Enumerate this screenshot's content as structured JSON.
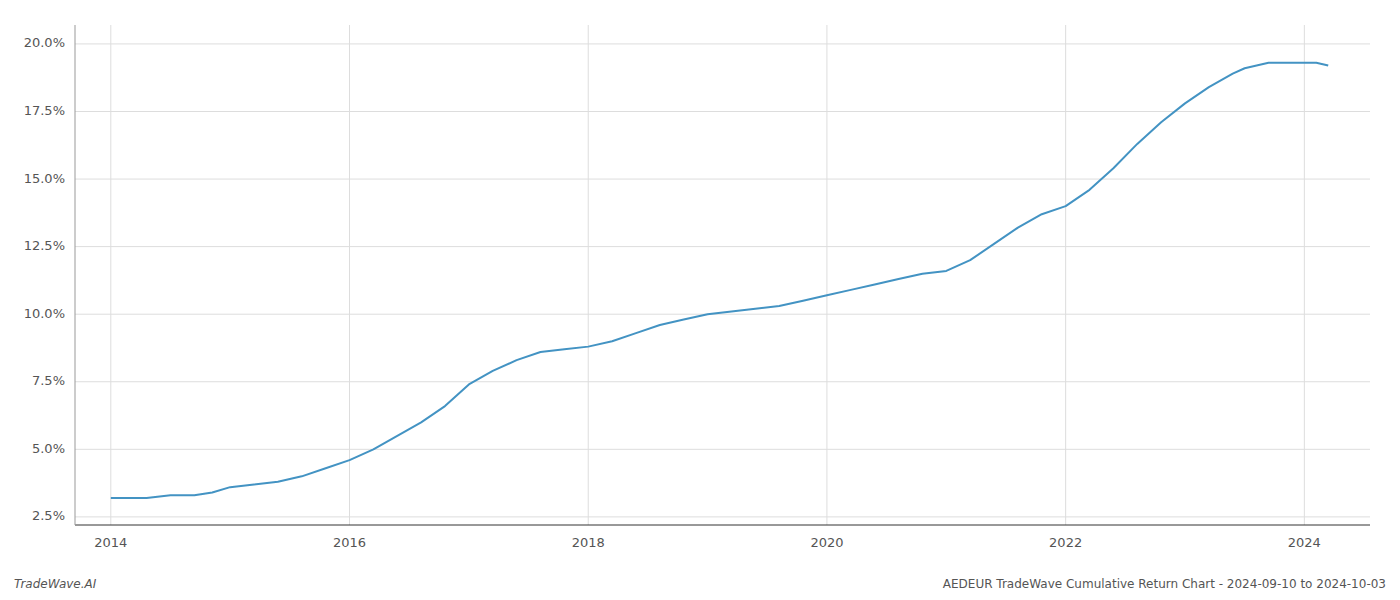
{
  "chart_data": {
    "type": "line",
    "annotations": [
      "TradeWave.AI",
      "AEDEUR TradeWave Cumulative Return Chart - 2024-09-10 to 2024-10-03"
    ],
    "color": "#4393c3",
    "grid": true,
    "xlim": [
      2013.7,
      2024.55
    ],
    "ylim": [
      0.022,
      0.207
    ],
    "xticks": [
      2014,
      2016,
      2018,
      2020,
      2022,
      2024
    ],
    "yticks": [
      {
        "value": 0.025,
        "label": "2.5%"
      },
      {
        "value": 0.05,
        "label": "5.0%"
      },
      {
        "value": 0.075,
        "label": "7.5%"
      },
      {
        "value": 0.1,
        "label": "10.0%"
      },
      {
        "value": 0.125,
        "label": "12.5%"
      },
      {
        "value": 0.15,
        "label": "15.0%"
      },
      {
        "value": 0.175,
        "label": "17.5%"
      },
      {
        "value": 0.2,
        "label": "20.0%"
      }
    ],
    "x": [
      2014.0,
      2014.15,
      2014.3,
      2014.5,
      2014.7,
      2014.85,
      2015.0,
      2015.2,
      2015.4,
      2015.6,
      2015.8,
      2016.0,
      2016.2,
      2016.4,
      2016.6,
      2016.8,
      2017.0,
      2017.2,
      2017.4,
      2017.6,
      2017.8,
      2018.0,
      2018.2,
      2018.4,
      2018.6,
      2018.8,
      2019.0,
      2019.2,
      2019.4,
      2019.6,
      2019.8,
      2020.0,
      2020.2,
      2020.4,
      2020.6,
      2020.8,
      2021.0,
      2021.2,
      2021.4,
      2021.6,
      2021.8,
      2022.0,
      2022.2,
      2022.4,
      2022.6,
      2022.8,
      2023.0,
      2023.2,
      2023.4,
      2023.5,
      2023.6,
      2023.7,
      2023.8,
      2023.9,
      2024.0,
      2024.1,
      2024.2
    ],
    "values": [
      0.032,
      0.032,
      0.032,
      0.033,
      0.033,
      0.034,
      0.036,
      0.037,
      0.038,
      0.04,
      0.043,
      0.046,
      0.05,
      0.055,
      0.06,
      0.066,
      0.074,
      0.079,
      0.083,
      0.086,
      0.087,
      0.088,
      0.09,
      0.093,
      0.096,
      0.098,
      0.1,
      0.101,
      0.102,
      0.103,
      0.105,
      0.107,
      0.109,
      0.111,
      0.113,
      0.115,
      0.116,
      0.12,
      0.126,
      0.132,
      0.137,
      0.14,
      0.146,
      0.154,
      0.163,
      0.171,
      0.178,
      0.184,
      0.189,
      0.191,
      0.192,
      0.193,
      0.193,
      0.193,
      0.193,
      0.193,
      0.192
    ]
  }
}
